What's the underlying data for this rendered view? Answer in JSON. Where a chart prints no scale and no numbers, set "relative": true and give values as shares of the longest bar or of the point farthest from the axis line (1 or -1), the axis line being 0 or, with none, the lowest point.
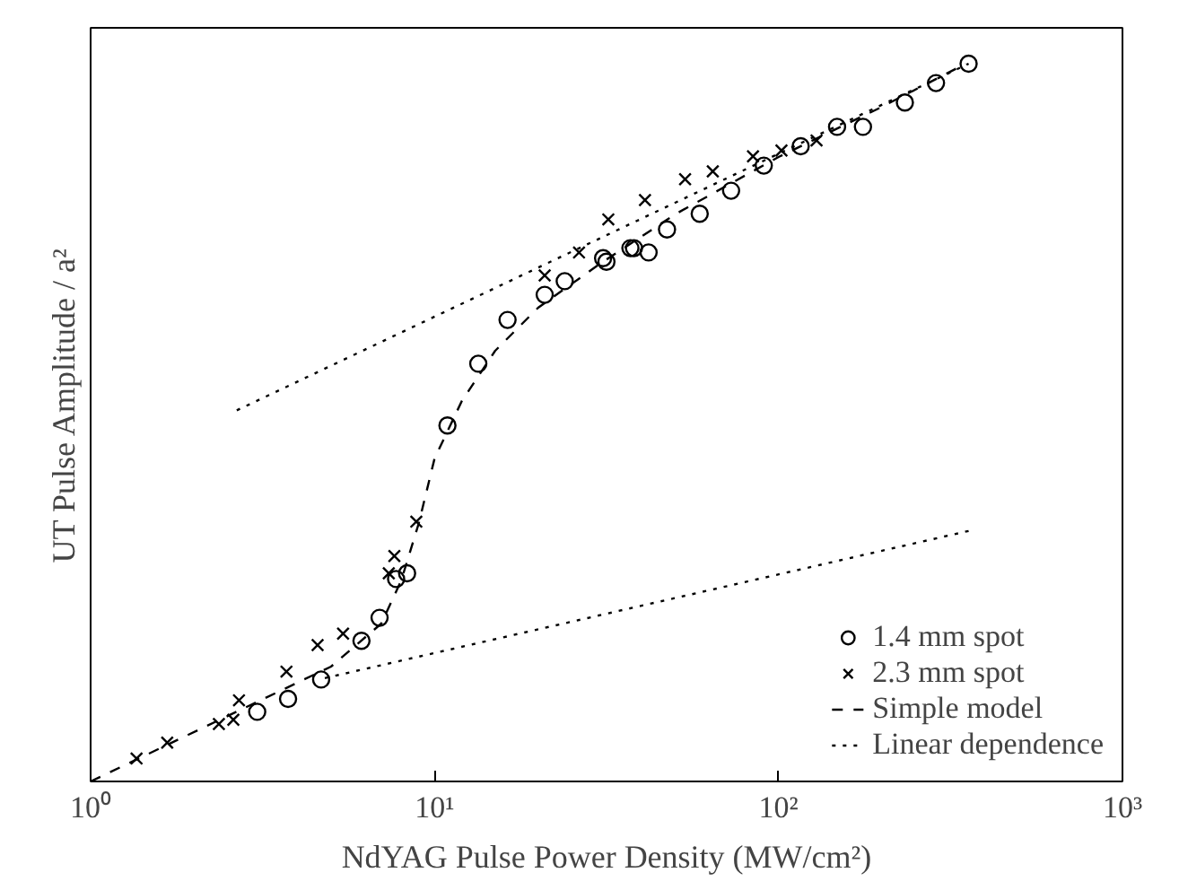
{
  "chart_data": {
    "type": "scatter",
    "relative": true,
    "xlabel": "NdYAG Pulse Power Density (MW/cm²)",
    "ylabel": "UT Pulse Amplitude / a²",
    "log": "x",
    "xlim": [
      1,
      1000
    ],
    "xticks": [
      {
        "value": 1,
        "label": "10⁰"
      },
      {
        "value": 10,
        "label": "10¹"
      },
      {
        "value": 100,
        "label": "10²"
      },
      {
        "value": 1000,
        "label": "10³"
      }
    ],
    "tick_labels": "x",
    "grid": false,
    "legend": "bottom right",
    "series": [
      {
        "name": "1.4 mm spot",
        "marker": "circle",
        "color": "#000000",
        "x": [
          3.05,
          3.75,
          4.68,
          6.13,
          6.92,
          7.73,
          8.32,
          10.9,
          13.4,
          16.3,
          20.9,
          23.9,
          30.9,
          31.6,
          37.1,
          38.0,
          41.9,
          47.4,
          59.0,
          72.8,
          90.6,
          116,
          148,
          176,
          233,
          287,
          357
        ],
        "values": [
          0.097,
          0.115,
          0.142,
          0.196,
          0.228,
          0.282,
          0.29,
          0.496,
          0.582,
          0.643,
          0.678,
          0.697,
          0.729,
          0.724,
          0.743,
          0.743,
          0.737,
          0.769,
          0.791,
          0.823,
          0.858,
          0.885,
          0.912,
          0.912,
          0.946,
          0.973,
          1
        ]
      },
      {
        "name": "2.3 mm spot",
        "marker": "cross",
        "color": "#000000",
        "x": [
          1.36,
          1.67,
          2.36,
          2.6,
          2.7,
          3.71,
          4.57,
          5.42,
          7.36,
          7.64,
          8.85,
          20.9,
          26.3,
          32.0,
          40.9,
          53.5,
          64.4,
          84.3,
          102,
          129
        ],
        "values": [
          0.032,
          0.054,
          0.08,
          0.086,
          0.113,
          0.153,
          0.19,
          0.206,
          0.29,
          0.314,
          0.362,
          0.705,
          0.737,
          0.783,
          0.81,
          0.839,
          0.85,
          0.871,
          0.879,
          0.893
        ]
      },
      {
        "name": "Simple model",
        "type": "line",
        "line_style": "dashed",
        "marker": "none",
        "color": "#000000",
        "x": [
          1,
          5,
          7,
          8,
          9,
          10,
          12,
          15,
          20,
          30,
          50,
          100,
          200,
          350
        ],
        "values": [
          0,
          0.16,
          0.22,
          0.28,
          0.36,
          0.45,
          0.53,
          0.6,
          0.66,
          0.72,
          0.79,
          0.87,
          0.94,
          1
        ]
      },
      {
        "name": "Linear dependence",
        "type": "line",
        "line_style": "dotted",
        "marker": "none",
        "color": "#000000",
        "x": [
          2.66,
          357,
          null,
          357,
          4.6
        ],
        "values": [
          0.517,
          1,
          null,
          0.349,
          0.142
        ]
      }
    ]
  }
}
